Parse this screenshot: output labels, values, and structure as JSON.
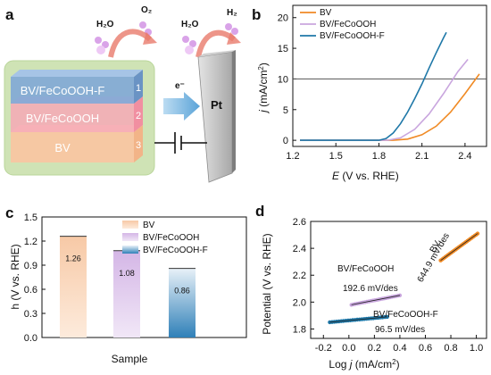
{
  "panels": {
    "a": "a",
    "b": "b",
    "c": "c",
    "d": "d"
  },
  "schematic": {
    "molecules": {
      "h2o_left": "H₂O",
      "o2": "O₂",
      "h2o_right": "H₂O",
      "h2": "H₂"
    },
    "layers": [
      {
        "label": "BV/FeCoOOH-F",
        "number": "1",
        "color": "#7fa7d6"
      },
      {
        "label": "BV/FeCoOOH",
        "number": "2",
        "color": "#f6a9b6"
      },
      {
        "label": "BV",
        "number": "3",
        "color": "#f6c8a3"
      }
    ],
    "electron": "e⁻",
    "counter_electrode": "Pt",
    "colors": {
      "background": "#cfe3b5",
      "arrow": "#e87b6b",
      "pt": "#9a9a9a"
    }
  },
  "chart_data": [
    {
      "panel": "b",
      "type": "line",
      "xlabel": "E (V vs. RHE)",
      "ylabel": "j (mA/cm²)",
      "xlim": [
        1.2,
        2.55
      ],
      "ylim": [
        -1,
        22
      ],
      "xticks": [
        "1.2",
        "1.5",
        "1.8",
        "2.1",
        "2.4"
      ],
      "yticks": [
        "0",
        "5",
        "10",
        "15",
        "20"
      ],
      "reference_line_y": 10,
      "legend_position": "top-left",
      "series": [
        {
          "name": "BV",
          "color": "#f08a24",
          "x": [
            1.25,
            1.9,
            2.0,
            2.1,
            2.2,
            2.3,
            2.4,
            2.5
          ],
          "y": [
            0,
            0,
            0.2,
            0.9,
            2.3,
            4.6,
            7.6,
            10.8
          ]
        },
        {
          "name": "BV/FeCoOOH",
          "color": "#c9a6de",
          "x": [
            1.25,
            1.86,
            1.95,
            2.05,
            2.15,
            2.25,
            2.35,
            2.42
          ],
          "y": [
            0,
            0,
            0.4,
            1.8,
            4.3,
            7.6,
            11.2,
            13.2
          ]
        },
        {
          "name": "BV/FeCoOOH-F",
          "color": "#1f78a8",
          "x": [
            1.25,
            1.8,
            1.85,
            1.9,
            1.95,
            2.0,
            2.05,
            2.1,
            2.15,
            2.2,
            2.25,
            2.27
          ],
          "y": [
            0,
            0,
            0.3,
            1.2,
            2.7,
            4.6,
            6.8,
            9.2,
            11.8,
            14.3,
            16.7,
            17.6
          ]
        }
      ]
    },
    {
      "panel": "c",
      "type": "bar",
      "xlabel": "Sample",
      "ylabel": "h (V vs. RHE)",
      "ylim": [
        0,
        1.5
      ],
      "yticks": [
        "0.0",
        "0.3",
        "0.6",
        "0.9",
        "1.2",
        "1.5"
      ],
      "categories": [
        "BV",
        "BV/FeCoOOH",
        "BV/FeCoOOH-F"
      ],
      "values": [
        1.26,
        1.08,
        0.86
      ],
      "value_labels": [
        "1.26",
        "1.08",
        "0.86"
      ],
      "legend_position": "top-right",
      "series": [
        {
          "name": "BV",
          "color": "#f4b183"
        },
        {
          "name": "BV/FeCoOOH",
          "color": "#c7a1dd"
        },
        {
          "name": "BV/FeCoOOH-F",
          "color": "#2f80b8"
        }
      ]
    },
    {
      "panel": "d",
      "type": "scatter",
      "xlabel": "Log j (mA/cm²)",
      "ylabel": "Potential (V vs. RHE)",
      "xlim": [
        -0.3,
        1.08
      ],
      "ylim": [
        1.73,
        2.6
      ],
      "xticks": [
        "-0.2",
        "0.0",
        "0.2",
        "0.4",
        "0.6",
        "0.8",
        "1.0"
      ],
      "yticks": [
        "1.8",
        "2.0",
        "2.2",
        "2.4",
        "2.6"
      ],
      "series": [
        {
          "name": "BV",
          "slope_label": "644.9 mV/des",
          "color": "#f08a24",
          "x0": 0.72,
          "x1": 1.01,
          "y0": 2.31,
          "y1": 2.51
        },
        {
          "name": "BV/FeCoOOH",
          "slope_label": "192.6 mV/des",
          "color": "#c9a6de",
          "x0": 0.02,
          "x1": 0.4,
          "y0": 1.98,
          "y1": 2.05
        },
        {
          "name": "BV/FeCoOOH-F",
          "slope_label": "96.5 mV/des",
          "color": "#1f78a8",
          "x0": -0.15,
          "x1": 0.3,
          "y0": 1.85,
          "y1": 1.89
        }
      ]
    }
  ]
}
